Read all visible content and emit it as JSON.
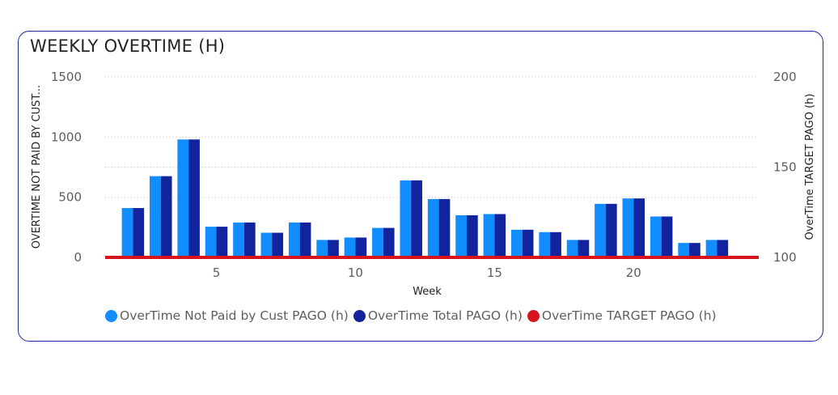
{
  "colors": {
    "not_paid": "#118dff",
    "total": "#12239e",
    "target": "#d7141c"
  },
  "chart_data": {
    "type": "bar",
    "title": "WEEKLY OVERTIME (H)",
    "xlabel": "Week",
    "ylabel": "OVERTIME NOT PAID BY CUST...",
    "y2label": "OverTime TARGET PAGO (h)",
    "x": [
      2,
      3,
      4,
      5,
      6,
      7,
      8,
      9,
      10,
      11,
      12,
      13,
      14,
      15,
      16,
      17,
      18,
      19,
      20,
      21,
      22,
      23
    ],
    "xticks": [
      "5",
      "10",
      "15",
      "20"
    ],
    "xtick_values": [
      5,
      10,
      15,
      20
    ],
    "xlim": [
      1,
      24.5
    ],
    "ylim": [
      0,
      1500
    ],
    "yticks": [
      "0",
      "500",
      "1000",
      "1500"
    ],
    "ytick_values": [
      0,
      500,
      1000,
      1500
    ],
    "y2lim": [
      100,
      200
    ],
    "y2ticks": [
      "100",
      "150",
      "200"
    ],
    "y2tick_values": [
      100,
      150,
      200
    ],
    "series": [
      {
        "name": "OverTime Not Paid by Cust PAGO (h)",
        "color": "#118dff",
        "values": [
          410,
          675,
          980,
          255,
          290,
          205,
          290,
          145,
          165,
          245,
          640,
          485,
          350,
          360,
          230,
          210,
          145,
          445,
          490,
          340,
          120,
          145
        ]
      },
      {
        "name": "OverTime Total PAGO (h)",
        "color": "#12239e",
        "values": [
          410,
          675,
          980,
          255,
          290,
          205,
          290,
          145,
          165,
          245,
          640,
          485,
          350,
          360,
          230,
          210,
          145,
          445,
          490,
          340,
          120,
          145
        ]
      },
      {
        "name": "OverTime TARGET PAGO (h)",
        "color": "#d7141c",
        "axis": "secondary",
        "type": "line",
        "values": [
          100,
          100,
          100,
          100,
          100,
          100,
          100,
          100,
          100,
          100,
          100,
          100,
          100,
          100,
          100,
          100,
          100,
          100,
          100,
          100,
          100,
          100
        ]
      }
    ],
    "grid": true,
    "legend_position": "bottom"
  }
}
